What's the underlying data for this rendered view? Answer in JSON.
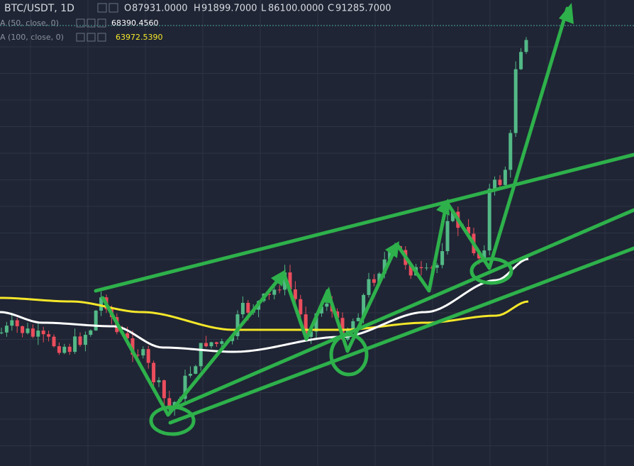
{
  "header": {
    "symbol": "BTC/USDT, 1D",
    "ohlc": [
      {
        "label": "O",
        "value": "87931.0000"
      },
      {
        "label": "H",
        "value": "91899.7000"
      },
      {
        "label": "L",
        "value": "86100.0000"
      },
      {
        "label": "C",
        "value": "91285.7000"
      }
    ]
  },
  "indicators": [
    {
      "name": "A (50, close, 0)",
      "value": "68390.4560"
    },
    {
      "name": "A (100, close, 0)",
      "value": "63972.5390"
    }
  ]
}
